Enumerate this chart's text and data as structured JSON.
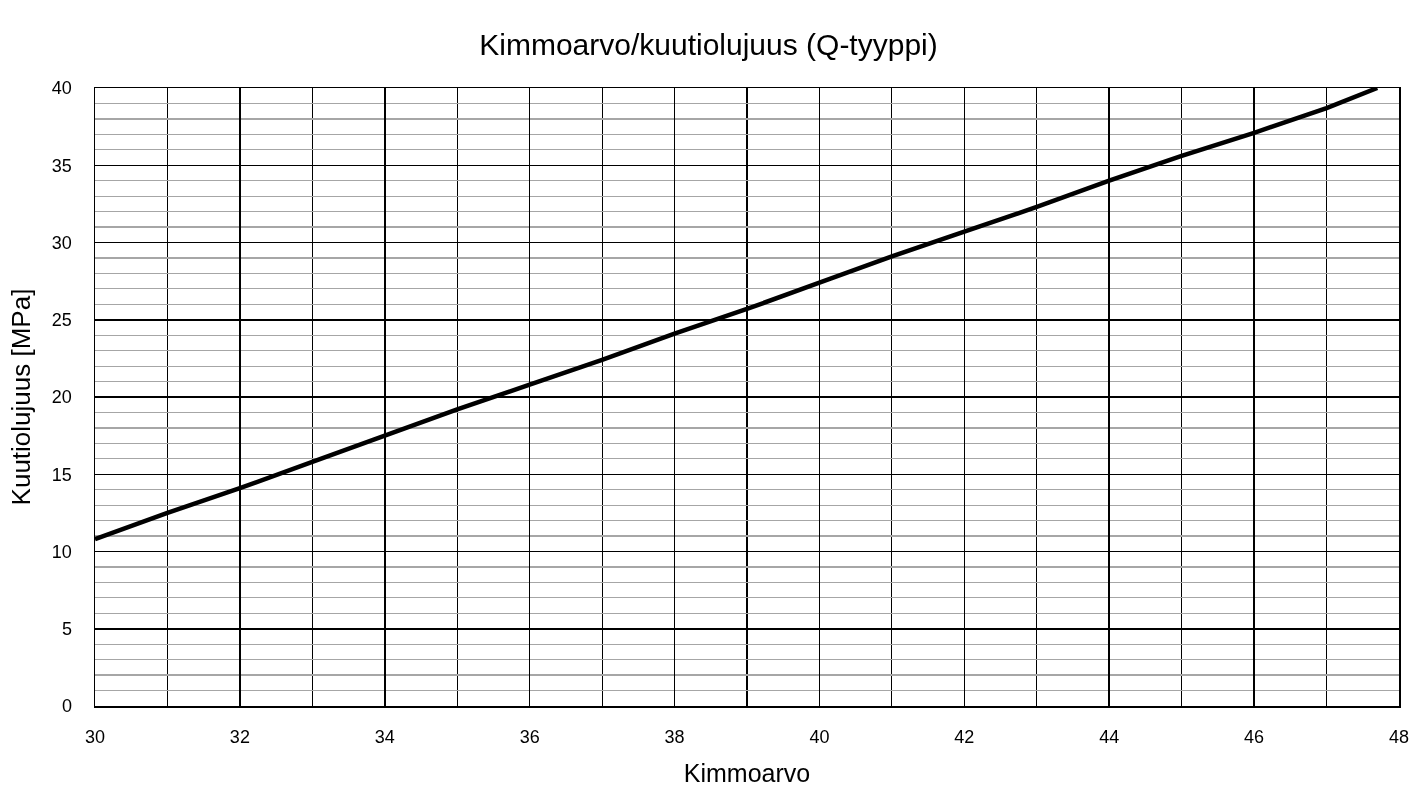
{
  "chart_data": {
    "type": "line",
    "title": "Kimmoarvo/kuutiolujuus (Q-tyyppi)",
    "xlabel": "Kimmoarvo",
    "ylabel": "Kuutiolujuus [MPa]",
    "x": [
      30,
      31,
      32,
      33,
      34,
      35,
      36,
      37,
      38,
      39,
      40,
      41,
      42,
      43,
      44,
      45,
      46,
      47,
      47.7
    ],
    "values": [
      10.8,
      12.5,
      14.1,
      15.8,
      17.5,
      19.2,
      20.8,
      22.4,
      24.1,
      25.7,
      27.4,
      29.1,
      30.7,
      32.3,
      34.0,
      35.6,
      37.1,
      38.7,
      40
    ],
    "color": "#000000",
    "marker": "none",
    "line_style": "solid",
    "grid": true,
    "xlim": [
      30,
      48
    ],
    "xticks": [
      30,
      {
        "value": 31,
        "label": null
      },
      32,
      {
        "value": 33,
        "label": null
      },
      34,
      {
        "value": 35,
        "label": null
      },
      36,
      {
        "value": 37,
        "label": null
      },
      38,
      {
        "value": 39,
        "label": null
      },
      40,
      {
        "value": 41,
        "label": null
      },
      42,
      {
        "value": 43,
        "label": null
      },
      44,
      {
        "value": 45,
        "label": null
      },
      46,
      {
        "value": 47,
        "label": null
      },
      48
    ],
    "ylim": [
      0,
      40
    ],
    "yticks": [
      0,
      {
        "value": 1,
        "label": null
      },
      {
        "value": 2,
        "label": null
      },
      {
        "value": 3,
        "label": null
      },
      {
        "value": 4,
        "label": null
      },
      5,
      {
        "value": 6,
        "label": null
      },
      {
        "value": 7,
        "label": null
      },
      {
        "value": 8,
        "label": null
      },
      {
        "value": 9,
        "label": null
      },
      10,
      {
        "value": 11,
        "label": null
      },
      {
        "value": 12,
        "label": null
      },
      {
        "value": 13,
        "label": null
      },
      {
        "value": 14,
        "label": null
      },
      15,
      {
        "value": 16,
        "label": null
      },
      {
        "value": 17,
        "label": null
      },
      {
        "value": 18,
        "label": null
      },
      {
        "value": 19,
        "label": null
      },
      20,
      {
        "value": 21,
        "label": null
      },
      {
        "value": 22,
        "label": null
      },
      {
        "value": 23,
        "label": null
      },
      {
        "value": 24,
        "label": null
      },
      25,
      {
        "value": 26,
        "label": null
      },
      {
        "value": 27,
        "label": null
      },
      {
        "value": 28,
        "label": null
      },
      {
        "value": 29,
        "label": null
      },
      30,
      {
        "value": 31,
        "label": null
      },
      {
        "value": 32,
        "label": null
      },
      {
        "value": 33,
        "label": null
      },
      {
        "value": 34,
        "label": null
      },
      35,
      {
        "value": 36,
        "label": null
      },
      {
        "value": 37,
        "label": null
      },
      {
        "value": 38,
        "label": null
      },
      {
        "value": 39,
        "label": null
      },
      40
    ]
  }
}
